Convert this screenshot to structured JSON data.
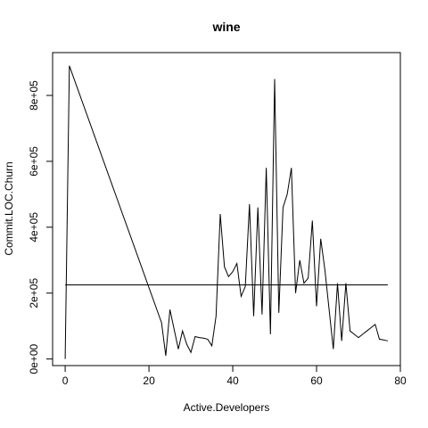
{
  "chart_data": {
    "type": "line",
    "title": "wine",
    "xlabel": "Active.Developers",
    "ylabel": "Commit.LOC.Churn",
    "xlim": [
      -3,
      80
    ],
    "ylim": [
      -20000,
      930000
    ],
    "x_ticks": [
      0,
      20,
      40,
      60,
      80
    ],
    "x_tick_labels": [
      "0",
      "20",
      "40",
      "60",
      "80"
    ],
    "y_ticks": [
      0,
      200000,
      400000,
      600000,
      800000
    ],
    "y_tick_labels": [
      "0e+00",
      "2e+05",
      "4e+05",
      "6e+05",
      "8e+05"
    ],
    "grid": false,
    "series": [
      {
        "x": [
          0,
          1,
          23,
          24,
          25,
          26,
          27,
          28,
          29,
          30,
          31,
          32,
          33,
          34,
          35,
          36,
          37,
          38,
          39,
          40,
          41,
          42,
          43,
          44,
          45,
          46,
          47,
          48,
          49,
          50,
          51,
          52,
          53,
          54,
          55,
          56,
          57,
          58,
          59,
          60,
          61,
          62,
          63,
          64,
          65,
          66,
          67,
          68,
          69,
          70,
          71,
          72,
          73,
          74,
          75,
          76,
          77
        ],
        "y": [
          0,
          890000,
          110000,
          10000,
          150000,
          90000,
          30000,
          85000,
          45000,
          20000,
          68000,
          65000,
          63000,
          60000,
          40000,
          130000,
          440000,
          280000,
          250000,
          265000,
          290000,
          190000,
          220000,
          470000,
          130000,
          460000,
          135000,
          580000,
          75000,
          850000,
          140000,
          460000,
          500000,
          580000,
          200000,
          300000,
          230000,
          245000,
          420000,
          160000,
          365000,
          270000,
          150000,
          30000,
          230000,
          55000,
          230000,
          85000,
          75000,
          65000,
          75000,
          85000,
          95000,
          105000,
          60000,
          58000,
          55000
        ]
      }
    ],
    "reference_line": {
      "y": 225000
    }
  }
}
